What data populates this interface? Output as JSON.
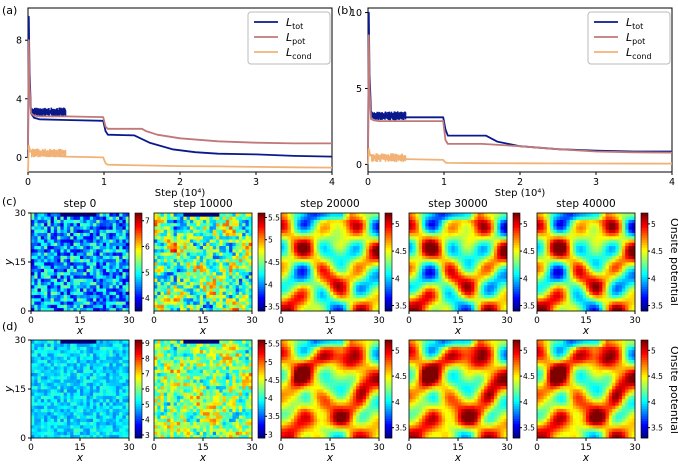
{
  "figure": {
    "panel_labels": {
      "a": "(a)",
      "b": "(b)",
      "c": "(c)",
      "d": "(d)"
    },
    "colormap": "jet",
    "colorbar_side_label": "Onsite potential",
    "heatmap_axes": {
      "xlabel": "x",
      "ylabel": "y",
      "ticks": [
        "0",
        "15",
        "30"
      ],
      "grid_size": 30
    }
  },
  "chart_data": [
    {
      "id": "a",
      "type": "line",
      "xlabel": "Step (10⁴)",
      "ylabel": "",
      "xlim": [
        0,
        4
      ],
      "ylim": [
        -1.0,
        10.2
      ],
      "xticks": [
        "0",
        "1",
        "2",
        "3",
        "4"
      ],
      "yticks": [
        0,
        4,
        8
      ],
      "legend_position": "top-right",
      "series": [
        {
          "name": "L_tot",
          "label_main": "L",
          "label_sub": "tot",
          "color": "#0a1a8c",
          "x": [
            0,
            0.01,
            0.02,
            0.04,
            0.08,
            0.15,
            0.5,
            0.99,
            1.02,
            1.05,
            1.4,
            1.6,
            1.9,
            2.2,
            2.5,
            3.0,
            3.5,
            4.0
          ],
          "y": [
            0.0,
            9.6,
            6.0,
            3.0,
            2.7,
            2.6,
            2.55,
            2.5,
            1.8,
            1.55,
            1.5,
            1.0,
            0.55,
            0.35,
            0.25,
            0.2,
            0.1,
            0.05
          ]
        },
        {
          "name": "L_pot",
          "label_main": "L",
          "label_sub": "pot",
          "color": "#c07878",
          "x": [
            0,
            0.01,
            0.02,
            0.04,
            0.08,
            0.15,
            0.5,
            0.99,
            1.02,
            1.05,
            1.3,
            1.5,
            1.55,
            1.7,
            2.0,
            2.5,
            3.0,
            3.5,
            4.0
          ],
          "y": [
            0.5,
            8.0,
            5.0,
            3.0,
            2.85,
            2.8,
            2.8,
            2.75,
            2.1,
            1.95,
            1.95,
            1.95,
            1.8,
            1.55,
            1.3,
            1.1,
            1.0,
            0.95,
            0.95
          ]
        },
        {
          "name": "L_cond",
          "label_main": "L",
          "label_sub": "cond",
          "color": "#f2b276",
          "x": [
            0,
            0.01,
            0.03,
            0.1,
            0.5,
            0.99,
            1.02,
            1.05,
            1.5,
            2.0,
            2.5,
            3.0,
            3.5,
            4.0
          ],
          "y": [
            -1.0,
            0.8,
            0.4,
            0.15,
            0.05,
            0.0,
            -0.4,
            -0.5,
            -0.55,
            -0.6,
            -0.62,
            -0.65,
            -0.68,
            -0.7
          ]
        }
      ],
      "noise_bands": [
        {
          "series": "L_tot",
          "x_start": 0.05,
          "x_end": 0.5,
          "y_low": 2.8,
          "y_high": 3.4
        },
        {
          "series": "L_cond",
          "x_start": 0.05,
          "x_end": 0.5,
          "y_low": 0.0,
          "y_high": 0.6
        }
      ]
    },
    {
      "id": "b",
      "type": "line",
      "xlabel": "Step (10⁴)",
      "ylabel": "",
      "xlim": [
        0,
        4
      ],
      "ylim": [
        -0.5,
        10.3
      ],
      "xticks": [
        "0",
        "1",
        "2",
        "3",
        "4"
      ],
      "yticks": [
        0,
        5,
        10
      ],
      "legend_position": "top-right",
      "series": [
        {
          "name": "L_tot",
          "label_main": "L",
          "label_sub": "tot",
          "color": "#0a1a8c",
          "x": [
            0,
            0.01,
            0.02,
            0.04,
            0.08,
            0.15,
            0.5,
            0.99,
            1.02,
            1.05,
            1.4,
            1.55,
            1.7,
            2.0,
            2.5,
            3.0,
            3.5,
            4.0
          ],
          "y": [
            0.0,
            10.0,
            6.0,
            3.5,
            3.2,
            3.1,
            3.1,
            3.1,
            2.3,
            1.9,
            1.9,
            1.9,
            1.5,
            1.2,
            1.0,
            0.9,
            0.85,
            0.85
          ]
        },
        {
          "name": "L_pot",
          "label_main": "L",
          "label_sub": "pot",
          "color": "#c07878",
          "x": [
            0,
            0.01,
            0.02,
            0.04,
            0.08,
            0.15,
            0.5,
            0.99,
            1.02,
            1.05,
            1.5,
            2.0,
            2.5,
            3.0,
            3.5,
            4.0
          ],
          "y": [
            0.5,
            8.5,
            5.0,
            3.0,
            2.9,
            2.85,
            2.85,
            2.85,
            1.6,
            1.35,
            1.35,
            1.2,
            1.0,
            0.85,
            0.8,
            0.78
          ]
        },
        {
          "name": "L_cond",
          "label_main": "L",
          "label_sub": "cond",
          "color": "#f2b276",
          "x": [
            0,
            0.01,
            0.03,
            0.1,
            0.5,
            0.99,
            1.02,
            1.05,
            1.5,
            2.0,
            3.0,
            4.0
          ],
          "y": [
            0.0,
            1.0,
            0.6,
            0.4,
            0.35,
            0.3,
            0.12,
            0.1,
            0.08,
            0.07,
            0.06,
            0.05
          ]
        }
      ],
      "noise_bands": [
        {
          "series": "L_tot",
          "x_start": 0.05,
          "x_end": 0.5,
          "y_low": 2.9,
          "y_high": 3.5
        },
        {
          "series": "L_cond",
          "x_start": 0.05,
          "x_end": 0.5,
          "y_low": 0.15,
          "y_high": 0.75
        }
      ]
    },
    {
      "id": "c",
      "type": "heatmap",
      "row": "c",
      "xlabel": "x",
      "ylabel": "y",
      "panels": [
        {
          "title": "step 0",
          "cbar_ticks": [
            4,
            5,
            6,
            7
          ],
          "vmin": 3.5,
          "vmax": 7.3,
          "mean": 4.6,
          "noise": 0.8,
          "structure": 0.0,
          "smooth": 0,
          "ring": false
        },
        {
          "title": "step 10000",
          "cbar_ticks": [
            3.5,
            4.0,
            4.5,
            5.0,
            5.5
          ],
          "vmin": 3.4,
          "vmax": 5.6,
          "mean": 4.45,
          "noise": 0.45,
          "structure": 0.25,
          "smooth": 0,
          "ring": false
        },
        {
          "title": "step 20000",
          "cbar_ticks": [
            3.5,
            4.0,
            4.5,
            5.0
          ],
          "vmin": 3.4,
          "vmax": 5.2,
          "mean": 4.45,
          "noise": 0.12,
          "structure": 0.55,
          "smooth": 1,
          "ring": false
        },
        {
          "title": "step 30000",
          "cbar_ticks": [
            3.5,
            4.0,
            4.5,
            5.0
          ],
          "vmin": 3.4,
          "vmax": 5.2,
          "mean": 4.45,
          "noise": 0.1,
          "structure": 0.6,
          "smooth": 1,
          "ring": false
        },
        {
          "title": "step 40000",
          "cbar_ticks": [
            3.5,
            4.0,
            4.5,
            5.0
          ],
          "vmin": 3.4,
          "vmax": 5.2,
          "mean": 4.45,
          "noise": 0.1,
          "structure": 0.6,
          "smooth": 1,
          "ring": false
        }
      ]
    },
    {
      "id": "d",
      "type": "heatmap",
      "row": "d",
      "xlabel": "x",
      "ylabel": "y",
      "panels": [
        {
          "title": "",
          "cbar_ticks": [
            3,
            4,
            5,
            6,
            7,
            8,
            9
          ],
          "vmin": 2.8,
          "vmax": 9.2,
          "mean": 5.0,
          "noise": 0.6,
          "structure": 0.0,
          "smooth": 0,
          "ring": false
        },
        {
          "title": "",
          "cbar_ticks": [
            3.0,
            3.5,
            4.0,
            4.5,
            5.0,
            5.5
          ],
          "vmin": 2.9,
          "vmax": 5.6,
          "mean": 4.3,
          "noise": 0.5,
          "structure": 0.2,
          "smooth": 0,
          "ring": false
        },
        {
          "title": "",
          "cbar_ticks": [
            3.5,
            4.0,
            4.5,
            5.0
          ],
          "vmin": 3.3,
          "vmax": 5.2,
          "mean": 4.5,
          "noise": 0.12,
          "structure": 0.45,
          "smooth": 1,
          "ring": true
        },
        {
          "title": "",
          "cbar_ticks": [
            3.5,
            4.0,
            4.5,
            5.0
          ],
          "vmin": 3.3,
          "vmax": 5.2,
          "mean": 4.5,
          "noise": 0.1,
          "structure": 0.5,
          "smooth": 1,
          "ring": true
        },
        {
          "title": "",
          "cbar_ticks": [
            3.5,
            4.0,
            4.5,
            5.0
          ],
          "vmin": 3.3,
          "vmax": 5.2,
          "mean": 4.5,
          "noise": 0.1,
          "structure": 0.5,
          "smooth": 1,
          "ring": true
        }
      ]
    }
  ]
}
